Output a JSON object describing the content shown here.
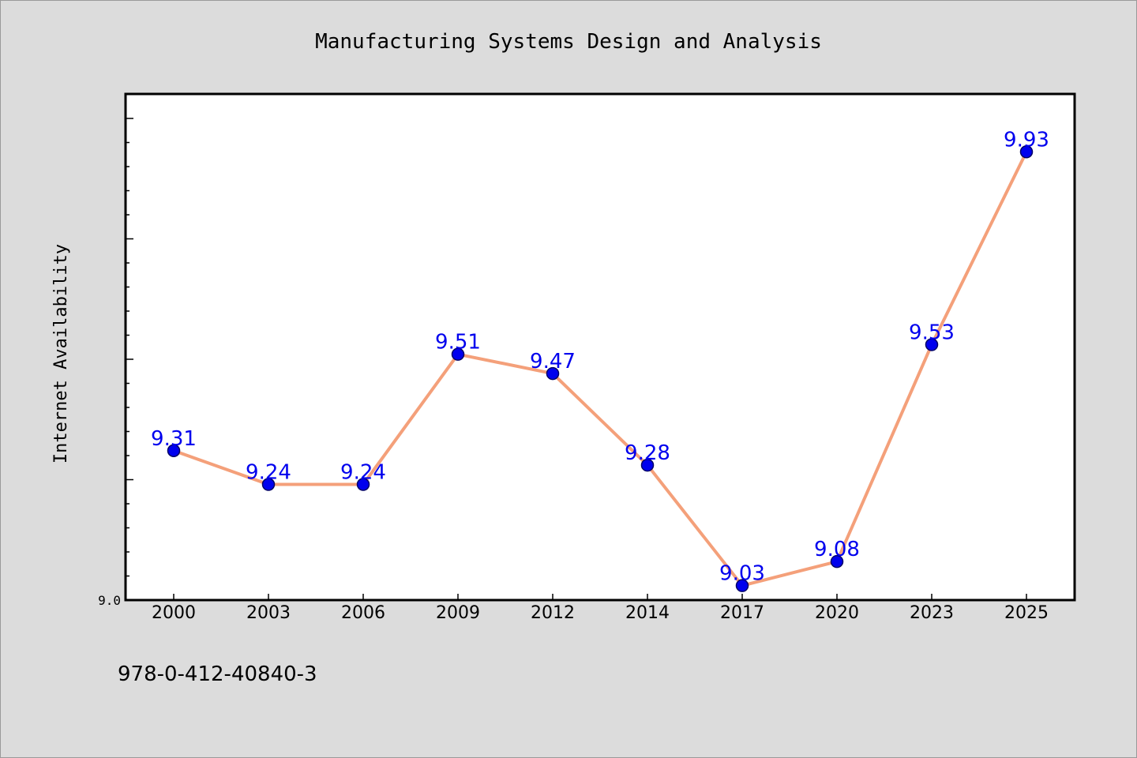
{
  "chart_data": {
    "type": "line",
    "title": "Manufacturing Systems Design and Analysis",
    "ylabel": "Internet Availability",
    "xlabel": "",
    "categories": [
      "2000",
      "2003",
      "2006",
      "2009",
      "2012",
      "2014",
      "2017",
      "2020",
      "2023",
      "2025"
    ],
    "series": [
      {
        "values": [
          9.31,
          9.24,
          9.24,
          9.51,
          9.47,
          9.28,
          9.03,
          9.08,
          9.53,
          9.93
        ],
        "data_labels": [
          "9.31",
          "9.24",
          "9.24",
          "9.51",
          "9.47",
          "9.28",
          "9.03",
          "9.08",
          "9.53",
          "9.93"
        ]
      }
    ],
    "ylim": [
      9.0,
      10.05
    ],
    "yticks": [
      {
        "value": 9.0,
        "label": "9.0"
      }
    ],
    "grid": false,
    "legend": "none",
    "colors": {
      "line": "#f4a07a",
      "marker": "#0000ee",
      "marker_edge": "#000066",
      "data_label": "#0000ee",
      "background": "#dcdcdc",
      "plot_background": "#ffffff"
    }
  },
  "footer": {
    "isbn": "978-0-412-40840-3"
  }
}
